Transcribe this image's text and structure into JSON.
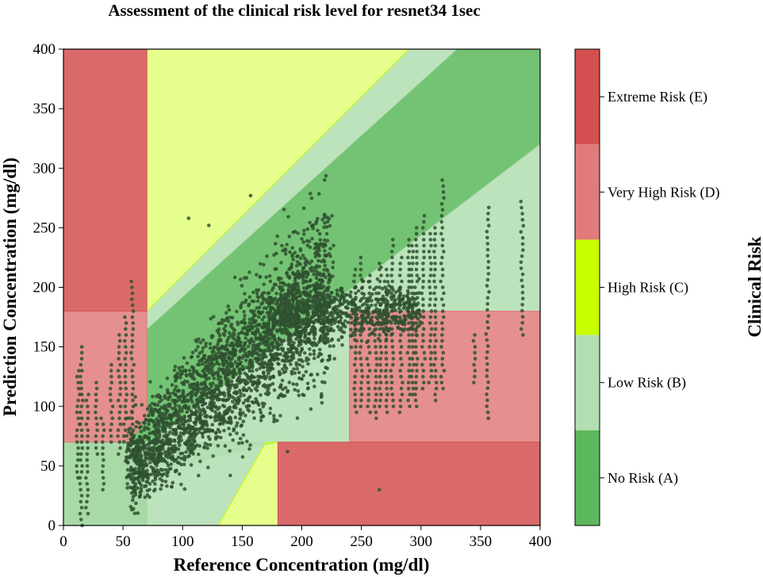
{
  "chart_data": {
    "type": "scatter",
    "title": "Assessment of the clinical risk level for resnet34 1sec",
    "xlabel": "Reference Concentration (mg/dl)",
    "ylabel": "Prediction Concentration (mg/dl)",
    "xlim": [
      0,
      400
    ],
    "ylim": [
      0,
      400
    ],
    "xticks": [
      0,
      50,
      100,
      150,
      200,
      250,
      300,
      350,
      400
    ],
    "yticks": [
      0,
      50,
      100,
      150,
      200,
      250,
      300,
      350,
      400
    ],
    "colorbar": {
      "title": "Clinical Risk",
      "levels": [
        {
          "label": "No Risk (A)",
          "color": "#5cb85c"
        },
        {
          "label": "Low Risk (B)",
          "color": "#b2deb2"
        },
        {
          "label": "High Risk (C)",
          "color": "#c8ff00"
        },
        {
          "label": "Very High Risk (D)",
          "color": "#e17b7b"
        },
        {
          "label": "Extreme Risk (E)",
          "color": "#d35050"
        }
      ]
    },
    "zones": [
      {
        "zone": "E",
        "polygon": [
          [
            0,
            180
          ],
          [
            70,
            180
          ],
          [
            70,
            400
          ],
          [
            0,
            400
          ]
        ]
      },
      {
        "zone": "E",
        "polygon": [
          [
            180,
            0
          ],
          [
            400,
            0
          ],
          [
            400,
            70
          ],
          [
            180,
            70
          ]
        ]
      },
      {
        "zone": "D",
        "polygon": [
          [
            0,
            70
          ],
          [
            55,
            70
          ],
          [
            70,
            90
          ],
          [
            70,
            180
          ],
          [
            0,
            180
          ]
        ]
      },
      {
        "zone": "D",
        "polygon": [
          [
            240,
            70
          ],
          [
            400,
            70
          ],
          [
            400,
            180
          ],
          [
            240,
            180
          ]
        ]
      },
      {
        "zone": "C",
        "polygon": [
          [
            70,
            180
          ],
          [
            70,
            400
          ],
          [
            290,
            400
          ]
        ]
      },
      {
        "zone": "C",
        "polygon": [
          [
            130,
            0
          ],
          [
            180,
            0
          ],
          [
            180,
            70
          ],
          [
            170,
            70
          ]
        ]
      },
      {
        "zone": "B",
        "polygon": [
          [
            70,
            180
          ],
          [
            290,
            400
          ],
          [
            330,
            400
          ],
          [
            70,
            165
          ]
        ]
      },
      {
        "zone": "B",
        "polygon": [
          [
            0,
            70
          ],
          [
            0,
            0
          ],
          [
            130,
            0
          ],
          [
            170,
            70
          ],
          [
            60,
            70
          ]
        ]
      },
      {
        "zone": "B",
        "polygon": [
          [
            60,
            60
          ],
          [
            400,
            320
          ],
          [
            400,
            180
          ],
          [
            240,
            180
          ],
          [
            240,
            70
          ],
          [
            180,
            70
          ],
          [
            90,
            48
          ]
        ]
      },
      {
        "zone": "A",
        "polygon": [
          [
            0,
            0
          ],
          [
            0,
            70
          ],
          [
            55,
            70
          ],
          [
            70,
            90
          ],
          [
            70,
            165
          ],
          [
            330,
            400
          ],
          [
            400,
            400
          ],
          [
            400,
            320
          ],
          [
            60,
            60
          ],
          [
            70,
            48
          ],
          [
            70,
            0
          ]
        ]
      }
    ],
    "scatter_summary": {
      "series": "predictions",
      "color": "#2f5130",
      "x_range": [
        12,
        385
      ],
      "y_range": [
        0,
        277
      ],
      "trend": "roughly follows identity line, compressed: y≈55 at x≈70, y≈200 at x≈200"
    }
  }
}
